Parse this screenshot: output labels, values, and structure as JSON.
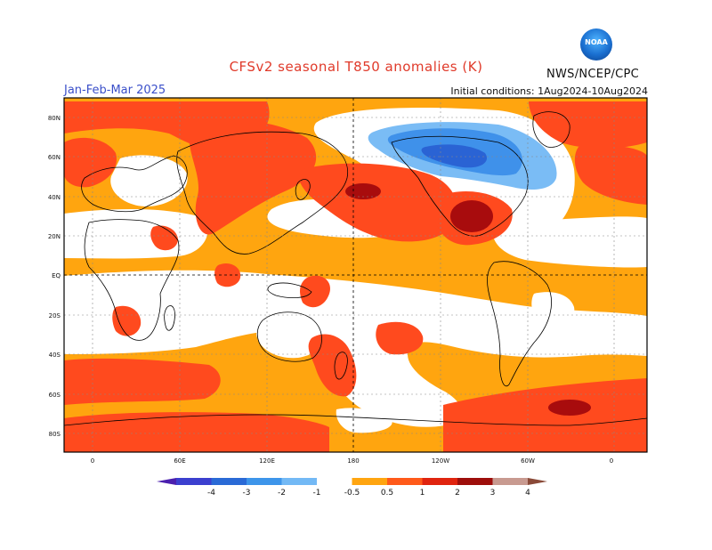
{
  "header": {
    "title": "CFSv2 seasonal T850 anomalies (K)",
    "period": "Jan-Feb-Mar 2025",
    "initial_conditions": "Initial conditions: 1Aug2024-10Aug2024",
    "agency": "NWS/NCEP/CPC",
    "logo_text": "NOAA"
  },
  "map": {
    "lat_labels": [
      "80N",
      "60N",
      "40N",
      "20N",
      "EQ",
      "20S",
      "40S",
      "60S",
      "80S"
    ],
    "lon_labels": [
      "0",
      "60E",
      "120E",
      "180",
      "120W",
      "60W",
      "0"
    ]
  },
  "colorbar": {
    "labels": [
      "-4",
      "-3",
      "-2",
      "-1",
      "-0.5",
      "0.5",
      "1",
      "2",
      "3",
      "4"
    ],
    "colors": [
      "#4b1fae",
      "#3b3fcf",
      "#2a6ad6",
      "#3d95ea",
      "#73b9f5",
      "#ffffff",
      "#ffa510",
      "#ff5a1a",
      "#e0240f",
      "#9e0e0b",
      "#c89a90",
      "#8a4a38"
    ]
  },
  "colors": {
    "warm1": "#ffa50f",
    "warm2": "#ff4a1e",
    "warm3": "#de2a14",
    "warm4": "#9a0a0c",
    "cool1": "#7abcf5",
    "cool2": "#3f91ea",
    "cool3": "#2a63d4"
  }
}
